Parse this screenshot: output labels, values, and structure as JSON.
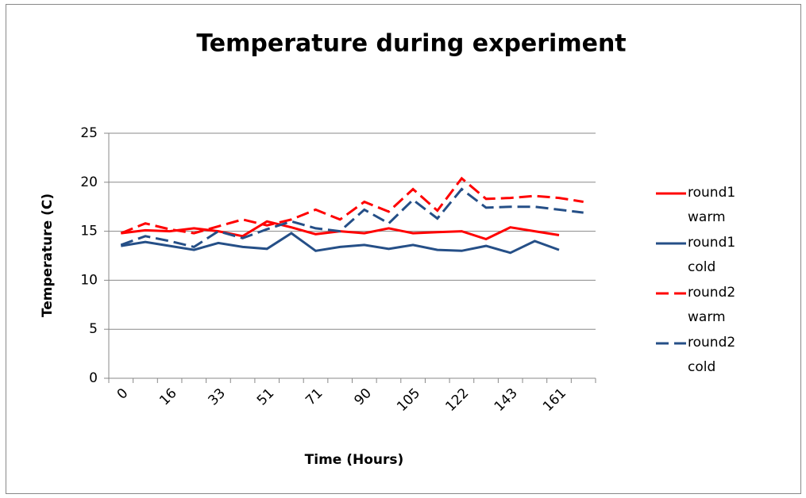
{
  "chart_data": {
    "type": "line",
    "title": "Temperature during experiment",
    "x_label": "Time (Hours)",
    "y_label": "Temperature (C)",
    "categories": [
      "0",
      null,
      "16",
      null,
      "33",
      null,
      "51",
      null,
      "71",
      null,
      "90",
      null,
      "105",
      null,
      "122",
      null,
      "143",
      null,
      "161",
      null
    ],
    "series": [
      {
        "name": "round1 warm",
        "color": "#ff0000",
        "dash": false,
        "values": [
          14.8,
          15.1,
          15.0,
          15.3,
          15.0,
          14.5,
          16.0,
          15.4,
          14.7,
          15.0,
          14.8,
          15.3,
          14.8,
          14.9,
          15.0,
          14.2,
          15.4,
          15.0,
          14.6,
          null
        ]
      },
      {
        "name": "round1 cold",
        "color": "#254f87",
        "dash": false,
        "values": [
          13.5,
          13.9,
          13.5,
          13.1,
          13.8,
          13.4,
          13.2,
          14.8,
          13.0,
          13.4,
          13.6,
          13.2,
          13.6,
          13.1,
          13.0,
          13.5,
          12.8,
          14.0,
          13.1,
          null
        ]
      },
      {
        "name": "round2 warm",
        "color": "#ff0000",
        "dash": true,
        "values": [
          14.8,
          15.8,
          15.2,
          14.8,
          15.5,
          16.2,
          15.6,
          16.2,
          17.2,
          16.2,
          18.0,
          17.0,
          19.3,
          17.1,
          20.4,
          18.3,
          18.4,
          18.6,
          18.4,
          18.0
        ]
      },
      {
        "name": "round2 cold",
        "color": "#254f87",
        "dash": true,
        "values": [
          13.6,
          14.5,
          14.0,
          13.4,
          15.0,
          14.3,
          15.2,
          16.0,
          15.3,
          15.0,
          17.2,
          15.8,
          18.2,
          16.3,
          19.3,
          17.4,
          17.5,
          17.5,
          17.2,
          16.9
        ]
      }
    ],
    "ylim": [
      0,
      25
    ],
    "yticks": [
      0,
      5,
      10,
      15,
      20,
      25
    ],
    "grid": true,
    "legend": "right"
  }
}
